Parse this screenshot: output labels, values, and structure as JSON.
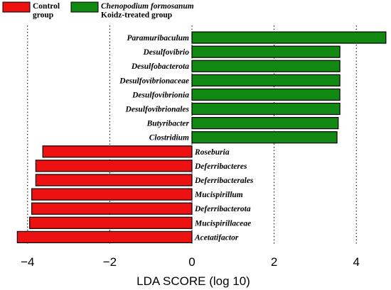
{
  "chart_data": {
    "type": "bar",
    "orientation": "horizontal",
    "xlabel": "LDA SCORE (log 10)",
    "xlim": [
      -4.3,
      4.85
    ],
    "xticks": [
      -4,
      -2,
      0,
      2,
      4
    ],
    "xtick_labels": [
      "−4",
      "−2",
      "0",
      "2",
      "4"
    ],
    "grid": "vertical dotted lines at ticks",
    "legend_position": "top-left",
    "legend": [
      {
        "label_lines": [
          "Control",
          "group"
        ],
        "color": "#ee1111",
        "italic_lines": [
          false,
          false
        ]
      },
      {
        "label_lines": [
          "Chenopodium formosanum",
          "Koidz-treated group"
        ],
        "color": "#118811",
        "italic_lines": [
          true,
          false
        ]
      }
    ],
    "series": [
      {
        "name": "Chenopodium formosanum Koidz-treated group",
        "color": "#118811",
        "categories": [
          "Paramuribaculum",
          "Desulfovibrio",
          "Desulfobacterota",
          "Desulfovibrionaceae",
          "Desulfovibrionia",
          "Desulfovibrionales",
          "Butyribacter",
          "Clostridium"
        ],
        "values": [
          4.72,
          3.6,
          3.6,
          3.6,
          3.6,
          3.6,
          3.56,
          3.53
        ]
      },
      {
        "name": "Control group",
        "color": "#ee1111",
        "categories": [
          "Roseburia",
          "Deferribacteres",
          "Deferribacterales",
          "Mucispirillum",
          "Deferribacterota",
          "Mucispirillaceae",
          "Acetatifactor"
        ],
        "values": [
          -3.63,
          -3.8,
          -3.8,
          -3.9,
          -3.9,
          -3.95,
          -4.25
        ]
      }
    ]
  }
}
